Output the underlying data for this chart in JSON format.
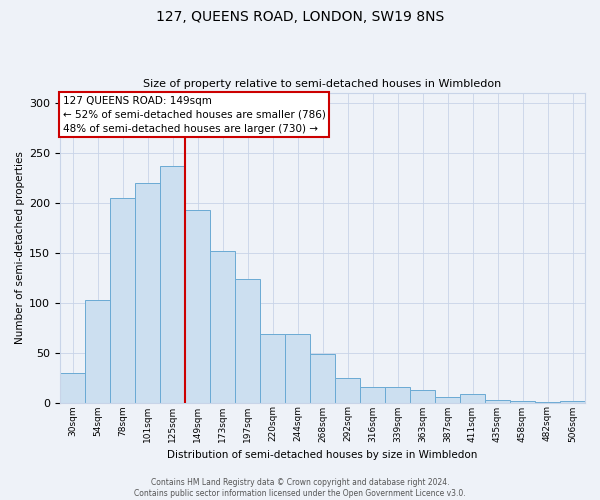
{
  "title": "127, QUEENS ROAD, LONDON, SW19 8NS",
  "subtitle": "Size of property relative to semi-detached houses in Wimbledon",
  "bar_labels": [
    "30sqm",
    "54sqm",
    "78sqm",
    "101sqm",
    "125sqm",
    "149sqm",
    "173sqm",
    "197sqm",
    "220sqm",
    "244sqm",
    "268sqm",
    "292sqm",
    "316sqm",
    "339sqm",
    "363sqm",
    "387sqm",
    "411sqm",
    "435sqm",
    "458sqm",
    "482sqm",
    "506sqm"
  ],
  "bar_values": [
    30,
    103,
    205,
    220,
    237,
    193,
    152,
    124,
    69,
    69,
    49,
    25,
    16,
    16,
    13,
    6,
    9,
    3,
    2,
    1,
    2
  ],
  "bar_color": "#ccdff0",
  "bar_edge_color": "#6aaad4",
  "ylabel": "Number of semi-detached properties",
  "xlabel": "Distribution of semi-detached houses by size in Wimbledon",
  "ylim": [
    0,
    310
  ],
  "yticks": [
    0,
    50,
    100,
    150,
    200,
    250,
    300
  ],
  "property_line_idx": 5,
  "annotation_title": "127 QUEENS ROAD: 149sqm",
  "annotation_line1": "← 52% of semi-detached houses are smaller (786)",
  "annotation_line2": "48% of semi-detached houses are larger (730) →",
  "annotation_color": "#cc0000",
  "grid_color": "#c8d4e8",
  "background_color": "#eef2f8",
  "footer1": "Contains HM Land Registry data © Crown copyright and database right 2024.",
  "footer2": "Contains public sector information licensed under the Open Government Licence v3.0."
}
